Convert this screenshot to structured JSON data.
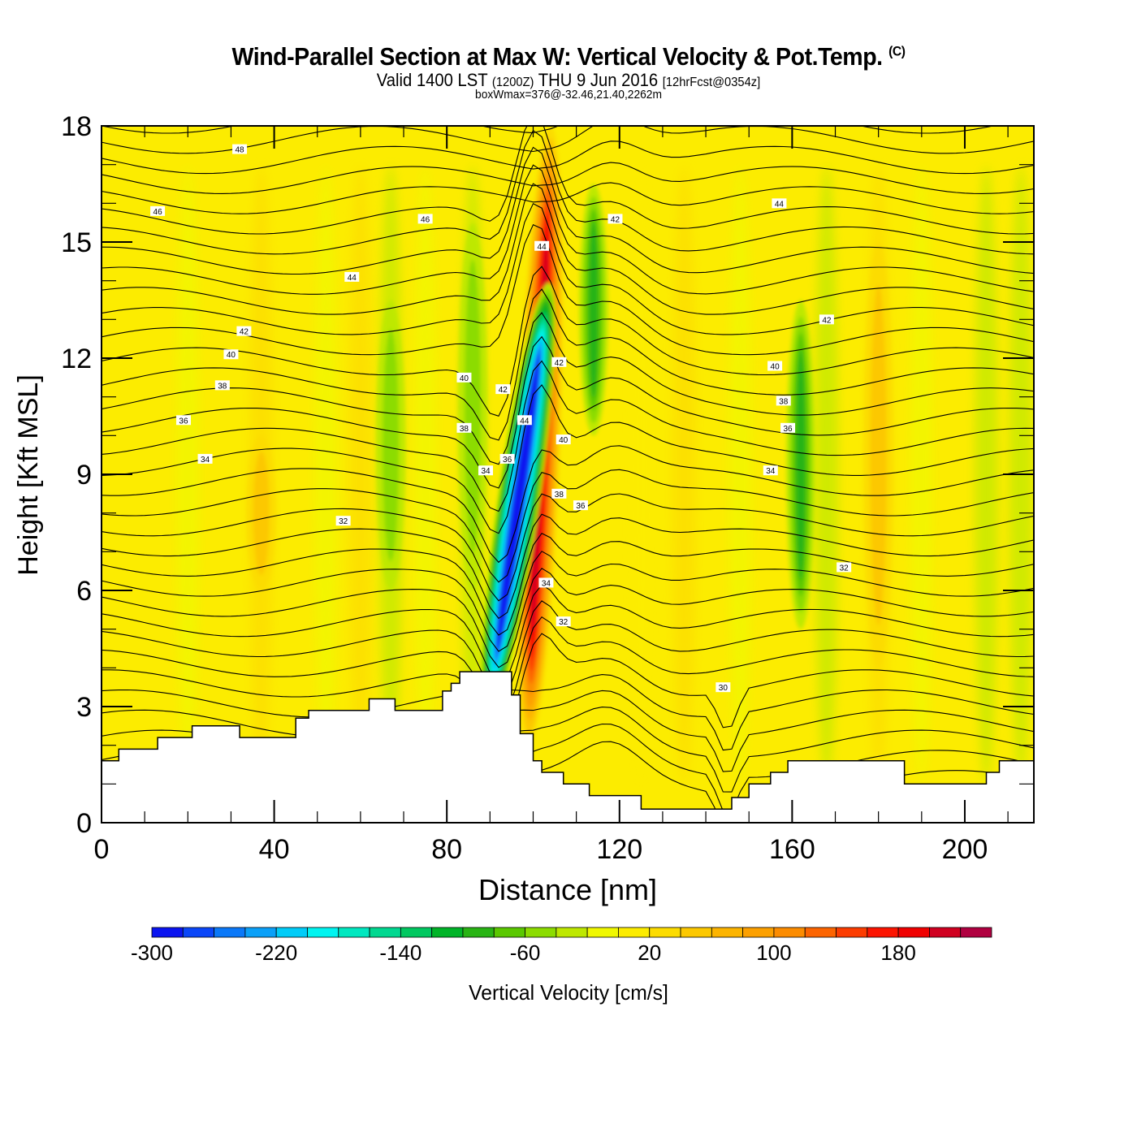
{
  "header": {
    "title": "Wind-Parallel Section at Max W: Vertical Velocity & Pot.Temp.",
    "copyright": "(C)",
    "valid_prefix": "Valid 1400 LST",
    "valid_utc": "(1200Z)",
    "valid_date": "THU 9 Jun 2016",
    "forecast": "[12hrFcst@0354z]",
    "box_info": "boxWmax=376@-32.46,21.40,2262m"
  },
  "chart_data": {
    "type": "heatmap",
    "title": "Wind-Parallel Section at Max W: Vertical Velocity & Pot.Temp.",
    "xlabel": "Distance [nm]",
    "ylabel": "Height [Kft MSL]",
    "xlim": [
      0,
      216
    ],
    "ylim": [
      0,
      18
    ],
    "xticks": [
      0,
      40,
      80,
      120,
      160,
      200
    ],
    "yticks": [
      0,
      3,
      6,
      9,
      12,
      15,
      18
    ],
    "grid": false,
    "colorbar": {
      "label": "Vertical Velocity [cm/s]",
      "placement": "bottom",
      "min": -300,
      "step": 20,
      "tick_labels": [
        "-300",
        "-220",
        "-140",
        "-60",
        "20",
        "100",
        "180"
      ],
      "colors": [
        "#0a14f0",
        "#0a46f8",
        "#0a78f8",
        "#0aa0f8",
        "#00ccf8",
        "#00f4f0",
        "#00e8c0",
        "#00d890",
        "#00c860",
        "#00b428",
        "#28b414",
        "#5ac800",
        "#8cdc00",
        "#bee800",
        "#f0f800",
        "#fcec00",
        "#fcdc00",
        "#fcc800",
        "#fcb400",
        "#fca000",
        "#fc8c00",
        "#fc6400",
        "#fc3c00",
        "#fc1400",
        "#f00000",
        "#d00020",
        "#b00040"
      ]
    },
    "terrain_kft": {
      "x_nm": [
        0,
        4,
        13,
        21,
        32,
        45,
        48,
        62,
        68,
        71,
        79,
        81,
        83,
        85,
        95,
        97,
        100,
        102,
        107,
        113,
        119,
        125,
        130,
        135,
        146,
        150,
        155,
        159,
        175,
        186,
        205,
        208,
        214,
        216
      ],
      "height": [
        1.6,
        1.9,
        2.2,
        2.5,
        2.2,
        2.7,
        2.9,
        3.2,
        2.9,
        2.9,
        3.4,
        3.6,
        3.9,
        3.9,
        3.3,
        2.3,
        1.6,
        1.3,
        1.0,
        0.7,
        0.7,
        0.35,
        0.35,
        0.35,
        0.65,
        1.0,
        1.3,
        1.6,
        1.6,
        1.0,
        1.3,
        1.6,
        1.6,
        1.6
      ]
    },
    "vertical_velocity_features": [
      {
        "name": "main-updraft",
        "x_nm": 101.5,
        "y_kft_range": [
          2.0,
          18.0
        ],
        "peak_cms": 200
      },
      {
        "name": "main-downdraft",
        "x_nm": 97.5,
        "y_kft_range": [
          2.5,
          14.0
        ],
        "peak_cms": -300
      },
      {
        "name": "downdraft-upper",
        "x_nm": 114,
        "y_kft_range": [
          10.0,
          16.5
        ],
        "peak_cms": -80
      },
      {
        "name": "downdraft-right",
        "x_nm": 162,
        "y_kft_range": [
          5.0,
          13.5
        ],
        "peak_cms": -80
      },
      {
        "name": "downdraft-left",
        "x_nm": 67,
        "y_kft_range": [
          6.0,
          13.5
        ],
        "peak_cms": -40
      },
      {
        "name": "downdraft-near-core",
        "x_nm": 86,
        "y_kft_range": [
          6.0,
          15.5
        ],
        "peak_cms": -40
      },
      {
        "name": "updraft-weak-right",
        "x_nm": 180,
        "y_kft_range": [
          4.0,
          15.0
        ],
        "peak_cms": 40
      },
      {
        "name": "updraft-weak-left",
        "x_nm": 37,
        "y_kft_range": [
          6.0,
          10.0
        ],
        "peak_cms": 40
      }
    ],
    "theta_contours": {
      "units": "C",
      "interval": 1,
      "labels": [
        {
          "text": "48",
          "x_nm": 32,
          "y_kft": 17.4
        },
        {
          "text": "46",
          "x_nm": 13,
          "y_kft": 15.8
        },
        {
          "text": "46",
          "x_nm": 75,
          "y_kft": 15.6
        },
        {
          "text": "44",
          "x_nm": 58,
          "y_kft": 14.1
        },
        {
          "text": "44",
          "x_nm": 102,
          "y_kft": 14.9
        },
        {
          "text": "44",
          "x_nm": 157,
          "y_kft": 16.0
        },
        {
          "text": "42",
          "x_nm": 33,
          "y_kft": 12.7
        },
        {
          "text": "42",
          "x_nm": 119,
          "y_kft": 15.6
        },
        {
          "text": "42",
          "x_nm": 168,
          "y_kft": 13.0
        },
        {
          "text": "42",
          "x_nm": 106,
          "y_kft": 11.9
        },
        {
          "text": "42",
          "x_nm": 93,
          "y_kft": 11.2
        },
        {
          "text": "40",
          "x_nm": 30,
          "y_kft": 12.1
        },
        {
          "text": "40",
          "x_nm": 84,
          "y_kft": 11.5
        },
        {
          "text": "40",
          "x_nm": 107,
          "y_kft": 9.9
        },
        {
          "text": "40",
          "x_nm": 156,
          "y_kft": 11.8
        },
        {
          "text": "38",
          "x_nm": 28,
          "y_kft": 11.3
        },
        {
          "text": "38",
          "x_nm": 158,
          "y_kft": 10.9
        },
        {
          "text": "38",
          "x_nm": 106,
          "y_kft": 8.5
        },
        {
          "text": "38",
          "x_nm": 84,
          "y_kft": 10.2
        },
        {
          "text": "36",
          "x_nm": 19,
          "y_kft": 10.4
        },
        {
          "text": "36",
          "x_nm": 94,
          "y_kft": 9.4
        },
        {
          "text": "36",
          "x_nm": 111,
          "y_kft": 8.2
        },
        {
          "text": "36",
          "x_nm": 159,
          "y_kft": 10.2
        },
        {
          "text": "34",
          "x_nm": 24,
          "y_kft": 9.4
        },
        {
          "text": "34",
          "x_nm": 89,
          "y_kft": 9.1
        },
        {
          "text": "34",
          "x_nm": 103,
          "y_kft": 6.2
        },
        {
          "text": "34",
          "x_nm": 155,
          "y_kft": 9.1
        },
        {
          "text": "44",
          "x_nm": 98,
          "y_kft": 10.4
        },
        {
          "text": "32",
          "x_nm": 56,
          "y_kft": 7.8
        },
        {
          "text": "32",
          "x_nm": 107,
          "y_kft": 5.2
        },
        {
          "text": "32",
          "x_nm": 172,
          "y_kft": 6.6
        },
        {
          "text": "30",
          "x_nm": 144,
          "y_kft": 3.5
        }
      ]
    }
  }
}
